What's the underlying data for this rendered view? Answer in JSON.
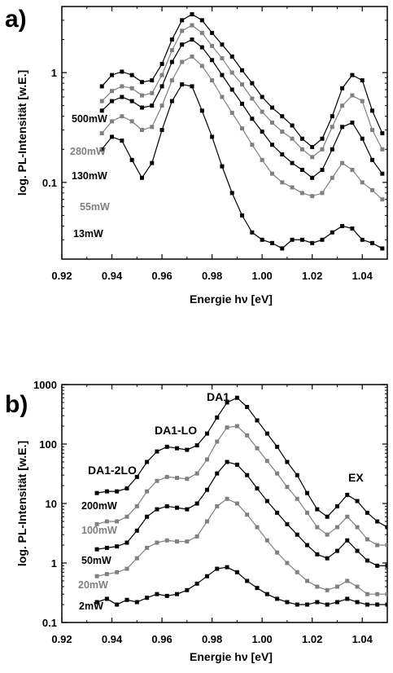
{
  "chart_data": [
    {
      "type": "scatter",
      "panel_label": "a",
      "xlabel": "Energie hν [eV]",
      "ylabel": "log. PL-Intensität [w.E.]",
      "xlim": [
        0.92,
        1.05
      ],
      "ylim": [
        0.02,
        4.0
      ],
      "yscale": "log",
      "xticks": [
        "0.92",
        "0.94",
        "0.96",
        "0.98",
        "1.00",
        "1.02",
        "1.04"
      ],
      "yticks": [
        "0.1",
        "1"
      ],
      "legend_placement": "left inline labels",
      "series": [
        {
          "name": "500mW",
          "color": "#000000",
          "x": [
            0.936,
            0.94,
            0.944,
            0.948,
            0.952,
            0.956,
            0.96,
            0.964,
            0.968,
            0.972,
            0.976,
            0.98,
            0.984,
            0.988,
            0.992,
            0.996,
            1.0,
            1.004,
            1.008,
            1.012,
            1.016,
            1.02,
            1.024,
            1.028,
            1.032,
            1.036,
            1.04,
            1.044,
            1.048
          ],
          "y": [
            0.75,
            0.95,
            1.02,
            0.95,
            0.82,
            0.85,
            1.2,
            2.0,
            3.0,
            3.4,
            3.0,
            2.3,
            1.8,
            1.4,
            1.05,
            0.8,
            0.6,
            0.48,
            0.4,
            0.33,
            0.25,
            0.21,
            0.25,
            0.4,
            0.72,
            0.95,
            0.85,
            0.45,
            0.28
          ]
        },
        {
          "name": "280mW",
          "color": "#808080",
          "x": [
            0.936,
            0.94,
            0.944,
            0.948,
            0.952,
            0.956,
            0.96,
            0.964,
            0.968,
            0.972,
            0.976,
            0.98,
            0.984,
            0.988,
            0.992,
            0.996,
            1.0,
            1.004,
            1.008,
            1.012,
            1.016,
            1.02,
            1.024,
            1.028,
            1.032,
            1.036,
            1.04,
            1.044,
            1.048
          ],
          "y": [
            0.55,
            0.68,
            0.75,
            0.72,
            0.62,
            0.65,
            0.95,
            1.6,
            2.4,
            2.7,
            2.3,
            1.75,
            1.35,
            1.0,
            0.78,
            0.58,
            0.44,
            0.35,
            0.29,
            0.25,
            0.2,
            0.17,
            0.2,
            0.32,
            0.5,
            0.62,
            0.55,
            0.3,
            0.2
          ]
        },
        {
          "name": "130mW",
          "color": "#000000",
          "x": [
            0.936,
            0.94,
            0.944,
            0.948,
            0.952,
            0.956,
            0.96,
            0.964,
            0.968,
            0.972,
            0.976,
            0.98,
            0.984,
            0.988,
            0.992,
            0.996,
            1.0,
            1.004,
            1.008,
            1.012,
            1.016,
            1.02,
            1.024,
            1.028,
            1.032,
            1.036,
            1.04,
            1.044,
            1.048
          ],
          "y": [
            0.45,
            0.55,
            0.6,
            0.55,
            0.48,
            0.5,
            0.75,
            1.25,
            1.8,
            2.0,
            1.7,
            1.3,
            0.95,
            0.7,
            0.52,
            0.38,
            0.29,
            0.22,
            0.18,
            0.15,
            0.13,
            0.11,
            0.13,
            0.2,
            0.32,
            0.35,
            0.25,
            0.16,
            0.12
          ]
        },
        {
          "name": "55mW",
          "color": "#808080",
          "x": [
            0.936,
            0.94,
            0.944,
            0.948,
            0.952,
            0.956,
            0.96,
            0.964,
            0.968,
            0.972,
            0.976,
            0.98,
            0.984,
            0.988,
            0.992,
            0.996,
            1.0,
            1.004,
            1.008,
            1.012,
            1.016,
            1.02,
            1.024,
            1.028,
            1.032,
            1.036,
            1.04,
            1.044,
            1.048
          ],
          "y": [
            0.28,
            0.36,
            0.4,
            0.36,
            0.3,
            0.32,
            0.5,
            0.85,
            1.25,
            1.4,
            1.15,
            0.85,
            0.6,
            0.43,
            0.31,
            0.22,
            0.16,
            0.12,
            0.1,
            0.09,
            0.08,
            0.075,
            0.08,
            0.11,
            0.15,
            0.13,
            0.1,
            0.085,
            0.07
          ]
        },
        {
          "name": "13mW",
          "color": "#000000",
          "x": [
            0.936,
            0.94,
            0.944,
            0.948,
            0.952,
            0.956,
            0.96,
            0.964,
            0.968,
            0.972,
            0.976,
            0.98,
            0.984,
            0.988,
            0.992,
            0.996,
            1.0,
            1.004,
            1.008,
            1.012,
            1.016,
            1.02,
            1.024,
            1.028,
            1.032,
            1.036,
            1.04,
            1.044,
            1.048
          ],
          "y": [
            0.2,
            0.26,
            0.24,
            0.16,
            0.11,
            0.15,
            0.3,
            0.55,
            0.78,
            0.75,
            0.45,
            0.26,
            0.14,
            0.08,
            0.05,
            0.035,
            0.03,
            0.028,
            0.025,
            0.03,
            0.03,
            0.028,
            0.03,
            0.035,
            0.04,
            0.038,
            0.03,
            0.028,
            0.025
          ]
        }
      ]
    },
    {
      "type": "scatter",
      "panel_label": "b",
      "xlabel": "Energie hν [eV]",
      "ylabel": "log. PL-Intensität [w.E.]",
      "xlim": [
        0.92,
        1.05
      ],
      "ylim": [
        0.1,
        1000
      ],
      "yscale": "log",
      "xticks": [
        "0.92",
        "0.94",
        "0.96",
        "0.98",
        "1.00",
        "1.02",
        "1.04"
      ],
      "yticks": [
        "0.1",
        "1",
        "10",
        "100",
        "1000"
      ],
      "legend_placement": "left inline labels",
      "annotations": [
        "DA1",
        "DA1-LO",
        "DA1-2LO",
        "EX"
      ],
      "series": [
        {
          "name": "200mW",
          "color": "#000000",
          "x": [
            0.934,
            0.938,
            0.942,
            0.946,
            0.95,
            0.954,
            0.958,
            0.962,
            0.966,
            0.97,
            0.974,
            0.978,
            0.982,
            0.986,
            0.99,
            0.994,
            0.998,
            1.002,
            1.006,
            1.01,
            1.014,
            1.018,
            1.022,
            1.026,
            1.03,
            1.034,
            1.038,
            1.042,
            1.046,
            1.05
          ],
          "y": [
            15,
            16,
            16,
            18,
            28,
            50,
            75,
            90,
            85,
            80,
            95,
            150,
            280,
            500,
            600,
            420,
            250,
            150,
            90,
            50,
            30,
            15,
            8,
            6,
            9,
            14,
            11,
            7,
            5,
            4
          ]
        },
        {
          "name": "100mW",
          "color": "#808080",
          "x": [
            0.934,
            0.938,
            0.942,
            0.946,
            0.95,
            0.954,
            0.958,
            0.962,
            0.966,
            0.97,
            0.974,
            0.978,
            0.982,
            0.986,
            0.99,
            0.994,
            0.998,
            1.002,
            1.006,
            1.01,
            1.014,
            1.018,
            1.022,
            1.026,
            1.03,
            1.034,
            1.038,
            1.042,
            1.046,
            1.05
          ],
          "y": [
            4.5,
            5,
            5,
            6,
            9,
            16,
            24,
            28,
            27,
            26,
            32,
            55,
            110,
            190,
            200,
            140,
            85,
            52,
            32,
            19,
            12,
            7,
            4,
            3,
            4,
            6,
            4,
            2.5,
            2,
            2
          ]
        },
        {
          "name": "50mW",
          "color": "#000000",
          "x": [
            0.934,
            0.938,
            0.942,
            0.946,
            0.95,
            0.954,
            0.958,
            0.962,
            0.966,
            0.97,
            0.974,
            0.978,
            0.982,
            0.986,
            0.99,
            0.994,
            0.998,
            1.002,
            1.006,
            1.01,
            1.014,
            1.018,
            1.022,
            1.026,
            1.03,
            1.034,
            1.038,
            1.042,
            1.046,
            1.05
          ],
          "y": [
            1.7,
            1.8,
            1.9,
            2.2,
            3.5,
            6,
            8,
            9,
            8.5,
            8,
            10,
            17,
            32,
            50,
            45,
            30,
            18,
            11,
            7,
            4.5,
            3,
            2,
            1.4,
            1.2,
            1.6,
            2.4,
            1.6,
            1.1,
            0.9,
            0.9
          ]
        },
        {
          "name": "20mW",
          "color": "#808080",
          "x": [
            0.934,
            0.938,
            0.942,
            0.946,
            0.95,
            0.954,
            0.958,
            0.962,
            0.966,
            0.97,
            0.974,
            0.978,
            0.982,
            0.986,
            0.99,
            0.994,
            0.998,
            1.002,
            1.006,
            1.01,
            1.014,
            1.018,
            1.022,
            1.026,
            1.03,
            1.034,
            1.038,
            1.042,
            1.046,
            1.05
          ],
          "y": [
            0.6,
            0.65,
            0.7,
            0.8,
            1.2,
            1.8,
            2.2,
            2.4,
            2.3,
            2.3,
            2.8,
            5,
            9,
            12,
            10,
            6.5,
            4,
            2.4,
            1.5,
            1.0,
            0.7,
            0.5,
            0.4,
            0.35,
            0.4,
            0.5,
            0.4,
            0.3,
            0.3,
            0.3
          ]
        },
        {
          "name": "2mW",
          "color": "#000000",
          "x": [
            0.934,
            0.938,
            0.942,
            0.946,
            0.95,
            0.954,
            0.958,
            0.962,
            0.966,
            0.97,
            0.974,
            0.978,
            0.982,
            0.986,
            0.99,
            0.994,
            0.998,
            1.002,
            1.006,
            1.01,
            1.014,
            1.018,
            1.022,
            1.026,
            1.03,
            1.034,
            1.038,
            1.042,
            1.046,
            1.05
          ],
          "y": [
            0.22,
            0.25,
            0.2,
            0.24,
            0.22,
            0.26,
            0.3,
            0.28,
            0.3,
            0.35,
            0.45,
            0.6,
            0.8,
            0.85,
            0.7,
            0.5,
            0.38,
            0.3,
            0.25,
            0.22,
            0.2,
            0.2,
            0.22,
            0.2,
            0.22,
            0.25,
            0.22,
            0.2,
            0.2,
            0.2
          ]
        }
      ]
    }
  ]
}
